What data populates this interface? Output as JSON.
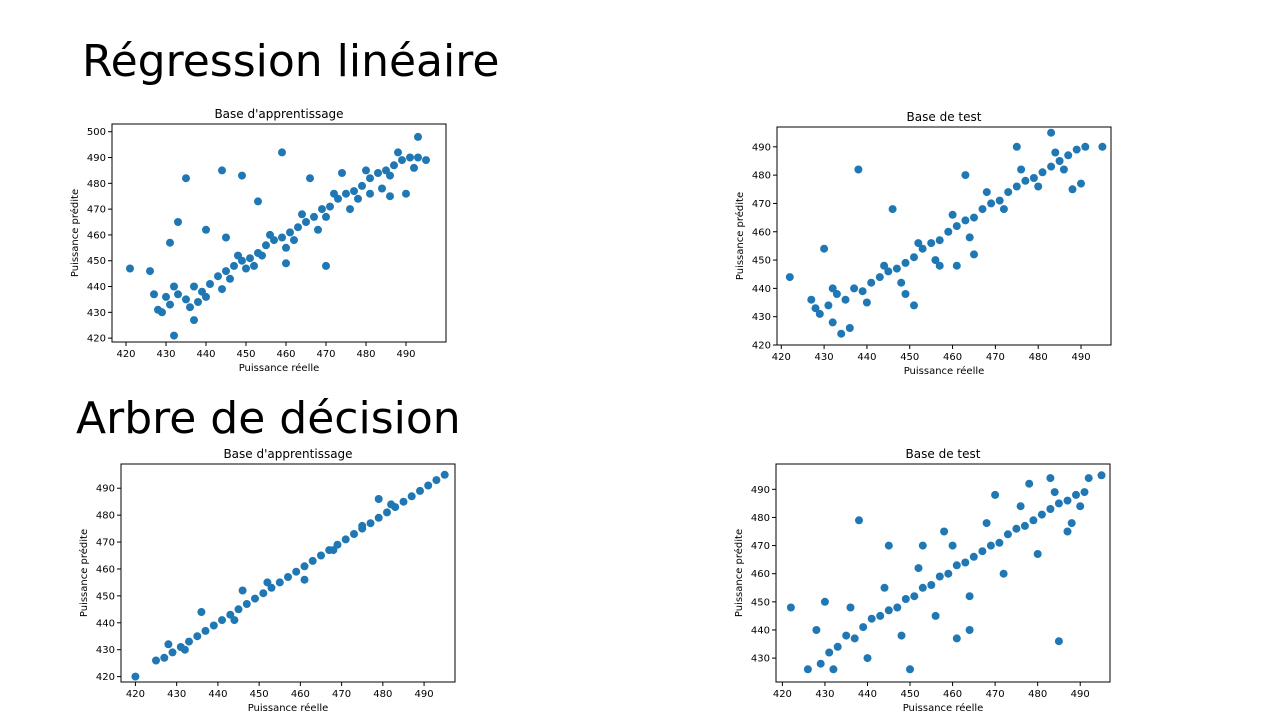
{
  "sections": [
    {
      "title": "Régression linéaire"
    },
    {
      "title": "Arbre de décision"
    }
  ],
  "colors": {
    "points": "#1f77b4",
    "axis": "#000000",
    "background": "#ffffff"
  },
  "chart_data": [
    {
      "type": "scatter",
      "title": "Base d'apprentissage",
      "xlabel": "Puissance réelle",
      "ylabel": "Puissance prédite",
      "xlim": [
        416.5,
        500
      ],
      "ylim": [
        418.5,
        503
      ],
      "xticks": [
        420,
        430,
        440,
        450,
        460,
        470,
        480,
        490
      ],
      "yticks": [
        420,
        430,
        440,
        450,
        460,
        470,
        480,
        490,
        500
      ],
      "grid": false,
      "points": [
        [
          421,
          447
        ],
        [
          435,
          482
        ],
        [
          444,
          485
        ],
        [
          449,
          483
        ],
        [
          459,
          492
        ],
        [
          431,
          457
        ],
        [
          433,
          465
        ],
        [
          453,
          473
        ],
        [
          445,
          459
        ],
        [
          440,
          462
        ],
        [
          426,
          446
        ],
        [
          470,
          448
        ],
        [
          460,
          449
        ],
        [
          481,
          476
        ],
        [
          490,
          476
        ],
        [
          486,
          475
        ],
        [
          493,
          498
        ],
        [
          432,
          421
        ],
        [
          437,
          427
        ],
        [
          450,
          447
        ],
        [
          466,
          482
        ],
        [
          474,
          484
        ],
        [
          427,
          437
        ],
        [
          429,
          430
        ],
        [
          431,
          433
        ],
        [
          433,
          437
        ],
        [
          435,
          435
        ],
        [
          437,
          440
        ],
        [
          439,
          438
        ],
        [
          441,
          441
        ],
        [
          443,
          444
        ],
        [
          445,
          446
        ],
        [
          447,
          448
        ],
        [
          449,
          450
        ],
        [
          451,
          451
        ],
        [
          453,
          453
        ],
        [
          455,
          456
        ],
        [
          457,
          458
        ],
        [
          459,
          459
        ],
        [
          461,
          461
        ],
        [
          463,
          463
        ],
        [
          465,
          465
        ],
        [
          467,
          467
        ],
        [
          469,
          470
        ],
        [
          471,
          471
        ],
        [
          473,
          474
        ],
        [
          475,
          476
        ],
        [
          477,
          477
        ],
        [
          479,
          479
        ],
        [
          481,
          482
        ],
        [
          483,
          484
        ],
        [
          485,
          485
        ],
        [
          487,
          487
        ],
        [
          489,
          489
        ],
        [
          491,
          490
        ],
        [
          493,
          490
        ],
        [
          495,
          489
        ],
        [
          428,
          431
        ],
        [
          432,
          440
        ],
        [
          436,
          432
        ],
        [
          440,
          436
        ],
        [
          444,
          439
        ],
        [
          448,
          452
        ],
        [
          452,
          448
        ],
        [
          456,
          460
        ],
        [
          460,
          455
        ],
        [
          464,
          468
        ],
        [
          468,
          462
        ],
        [
          472,
          476
        ],
        [
          476,
          470
        ],
        [
          480,
          485
        ],
        [
          484,
          478
        ],
        [
          488,
          492
        ],
        [
          492,
          486
        ],
        [
          430,
          436
        ],
        [
          438,
          434
        ],
        [
          446,
          443
        ],
        [
          454,
          452
        ],
        [
          462,
          458
        ],
        [
          470,
          467
        ],
        [
          478,
          474
        ],
        [
          486,
          483
        ]
      ]
    },
    {
      "type": "scatter",
      "title": "Base de test",
      "xlabel": "Puissance réelle",
      "ylabel": "Puissance prédite",
      "xlim": [
        419,
        497
      ],
      "ylim": [
        420,
        497
      ],
      "xticks": [
        420,
        430,
        440,
        450,
        460,
        470,
        480,
        490
      ],
      "yticks": [
        420,
        430,
        440,
        450,
        460,
        470,
        480,
        490
      ],
      "grid": false,
      "points": [
        [
          422,
          444
        ],
        [
          438,
          482
        ],
        [
          430,
          454
        ],
        [
          446,
          468
        ],
        [
          463,
          480
        ],
        [
          475,
          490
        ],
        [
          483,
          495
        ],
        [
          495,
          490
        ],
        [
          488,
          475
        ],
        [
          490,
          477
        ],
        [
          434,
          424
        ],
        [
          451,
          434
        ],
        [
          461,
          448
        ],
        [
          465,
          452
        ],
        [
          432,
          428
        ],
        [
          436,
          426
        ],
        [
          449,
          438
        ],
        [
          457,
          448
        ],
        [
          427,
          436
        ],
        [
          429,
          431
        ],
        [
          431,
          434
        ],
        [
          433,
          438
        ],
        [
          435,
          436
        ],
        [
          437,
          440
        ],
        [
          439,
          439
        ],
        [
          441,
          442
        ],
        [
          443,
          444
        ],
        [
          445,
          446
        ],
        [
          447,
          447
        ],
        [
          449,
          449
        ],
        [
          451,
          451
        ],
        [
          453,
          454
        ],
        [
          455,
          456
        ],
        [
          457,
          457
        ],
        [
          459,
          460
        ],
        [
          461,
          462
        ],
        [
          463,
          464
        ],
        [
          465,
          465
        ],
        [
          467,
          468
        ],
        [
          469,
          470
        ],
        [
          471,
          471
        ],
        [
          473,
          474
        ],
        [
          475,
          476
        ],
        [
          477,
          478
        ],
        [
          479,
          479
        ],
        [
          481,
          481
        ],
        [
          483,
          483
        ],
        [
          485,
          485
        ],
        [
          487,
          487
        ],
        [
          489,
          489
        ],
        [
          491,
          490
        ],
        [
          428,
          433
        ],
        [
          432,
          440
        ],
        [
          440,
          435
        ],
        [
          444,
          448
        ],
        [
          448,
          442
        ],
        [
          452,
          456
        ],
        [
          456,
          450
        ],
        [
          460,
          466
        ],
        [
          464,
          458
        ],
        [
          468,
          474
        ],
        [
          472,
          468
        ],
        [
          476,
          482
        ],
        [
          480,
          476
        ],
        [
          484,
          488
        ],
        [
          486,
          482
        ]
      ]
    },
    {
      "type": "scatter",
      "title": "Base d'apprentissage",
      "xlabel": "Puissance réelle",
      "ylabel": "Puissance prédite",
      "xlim": [
        416.5,
        497.5
      ],
      "ylim": [
        418,
        499
      ],
      "xticks": [
        420,
        430,
        440,
        450,
        460,
        470,
        480,
        490
      ],
      "yticks": [
        420,
        430,
        440,
        450,
        460,
        470,
        480,
        490
      ],
      "grid": false,
      "points": [
        [
          420,
          420
        ],
        [
          425,
          426
        ],
        [
          427,
          427
        ],
        [
          429,
          429
        ],
        [
          431,
          431
        ],
        [
          433,
          433
        ],
        [
          435,
          435
        ],
        [
          437,
          437
        ],
        [
          439,
          439
        ],
        [
          441,
          441
        ],
        [
          443,
          443
        ],
        [
          445,
          445
        ],
        [
          447,
          447
        ],
        [
          449,
          449
        ],
        [
          451,
          451
        ],
        [
          453,
          453
        ],
        [
          455,
          455
        ],
        [
          457,
          457
        ],
        [
          459,
          459
        ],
        [
          461,
          461
        ],
        [
          463,
          463
        ],
        [
          465,
          465
        ],
        [
          467,
          467
        ],
        [
          469,
          469
        ],
        [
          471,
          471
        ],
        [
          473,
          473
        ],
        [
          475,
          475
        ],
        [
          477,
          477
        ],
        [
          479,
          479
        ],
        [
          481,
          481
        ],
        [
          483,
          483
        ],
        [
          485,
          485
        ],
        [
          487,
          487
        ],
        [
          489,
          489
        ],
        [
          491,
          491
        ],
        [
          493,
          493
        ],
        [
          495,
          495
        ],
        [
          436,
          444
        ],
        [
          446,
          452
        ],
        [
          479,
          486
        ],
        [
          461,
          456
        ],
        [
          475,
          476
        ],
        [
          428,
          432
        ],
        [
          432,
          430
        ],
        [
          444,
          441
        ],
        [
          452,
          455
        ],
        [
          468,
          467
        ],
        [
          482,
          484
        ]
      ]
    },
    {
      "type": "scatter",
      "title": "Base de test",
      "xlabel": "Puissance réelle",
      "ylabel": "Puissance prédite",
      "xlim": [
        418.5,
        497
      ],
      "ylim": [
        421.5,
        499
      ],
      "xticks": [
        420,
        430,
        440,
        450,
        460,
        470,
        480,
        490
      ],
      "yticks": [
        430,
        440,
        450,
        460,
        470,
        480,
        490
      ],
      "grid": false,
      "points": [
        [
          422,
          448
        ],
        [
          438,
          479
        ],
        [
          485,
          436
        ],
        [
          450,
          426
        ],
        [
          461,
          437
        ],
        [
          464,
          440
        ],
        [
          495,
          495
        ],
        [
          492,
          494
        ],
        [
          490,
          484
        ],
        [
          487,
          475
        ],
        [
          445,
          470
        ],
        [
          430,
          450
        ],
        [
          453,
          470
        ],
        [
          458,
          475
        ],
        [
          470,
          488
        ],
        [
          483,
          494
        ],
        [
          478,
          492
        ],
        [
          426,
          426
        ],
        [
          429,
          428
        ],
        [
          431,
          432
        ],
        [
          433,
          434
        ],
        [
          435,
          438
        ],
        [
          437,
          437
        ],
        [
          439,
          441
        ],
        [
          441,
          444
        ],
        [
          443,
          445
        ],
        [
          445,
          447
        ],
        [
          447,
          448
        ],
        [
          449,
          451
        ],
        [
          451,
          452
        ],
        [
          453,
          455
        ],
        [
          455,
          456
        ],
        [
          457,
          459
        ],
        [
          459,
          460
        ],
        [
          461,
          463
        ],
        [
          463,
          464
        ],
        [
          465,
          466
        ],
        [
          467,
          468
        ],
        [
          469,
          470
        ],
        [
          471,
          471
        ],
        [
          473,
          474
        ],
        [
          475,
          476
        ],
        [
          477,
          477
        ],
        [
          479,
          479
        ],
        [
          481,
          481
        ],
        [
          483,
          483
        ],
        [
          485,
          485
        ],
        [
          487,
          486
        ],
        [
          489,
          488
        ],
        [
          491,
          489
        ],
        [
          428,
          440
        ],
        [
          432,
          426
        ],
        [
          436,
          448
        ],
        [
          440,
          430
        ],
        [
          444,
          455
        ],
        [
          448,
          438
        ],
        [
          452,
          462
        ],
        [
          456,
          445
        ],
        [
          460,
          470
        ],
        [
          464,
          452
        ],
        [
          468,
          478
        ],
        [
          472,
          460
        ],
        [
          476,
          484
        ],
        [
          480,
          467
        ],
        [
          484,
          489
        ],
        [
          488,
          478
        ]
      ]
    }
  ]
}
